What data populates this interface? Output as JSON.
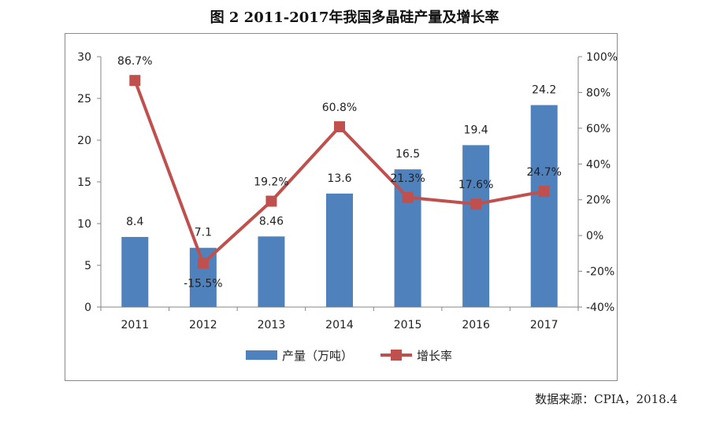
{
  "title": "图 2 2011-2017年我国多晶硅产量及增长率",
  "source": "数据来源：CPIA，2018.4",
  "chart_data": {
    "type": "bar+line",
    "categories": [
      "2011",
      "2012",
      "2013",
      "2014",
      "2015",
      "2016",
      "2017"
    ],
    "series": [
      {
        "name": "产量（万吨）",
        "type": "bar",
        "axis": "left",
        "color": "#4F81BD",
        "values": [
          8.4,
          7.1,
          8.46,
          13.6,
          16.5,
          19.4,
          24.2
        ],
        "labels": [
          "8.4",
          "7.1",
          "8.46",
          "13.6",
          "16.5",
          "19.4",
          "24.2"
        ]
      },
      {
        "name": "增长率",
        "type": "line",
        "axis": "right",
        "color": "#C0504D",
        "values": [
          86.7,
          -15.5,
          19.2,
          60.8,
          21.3,
          17.6,
          24.7
        ],
        "labels": [
          "86.7%",
          "-15.5%",
          "19.2%",
          "60.8%",
          "21.3%",
          "17.6%",
          "24.7%"
        ]
      }
    ],
    "left_axis": {
      "min": 0,
      "max": 30,
      "step": 5,
      "ticks": [
        "0",
        "5",
        "10",
        "15",
        "20",
        "25",
        "30"
      ]
    },
    "right_axis": {
      "min": -40,
      "max": 100,
      "step": 20,
      "ticks": [
        "-40%",
        "-20%",
        "0%",
        "20%",
        "40%",
        "60%",
        "80%",
        "100%"
      ]
    },
    "legend": [
      "产量（万吨）",
      "增长率"
    ],
    "grid": false
  }
}
